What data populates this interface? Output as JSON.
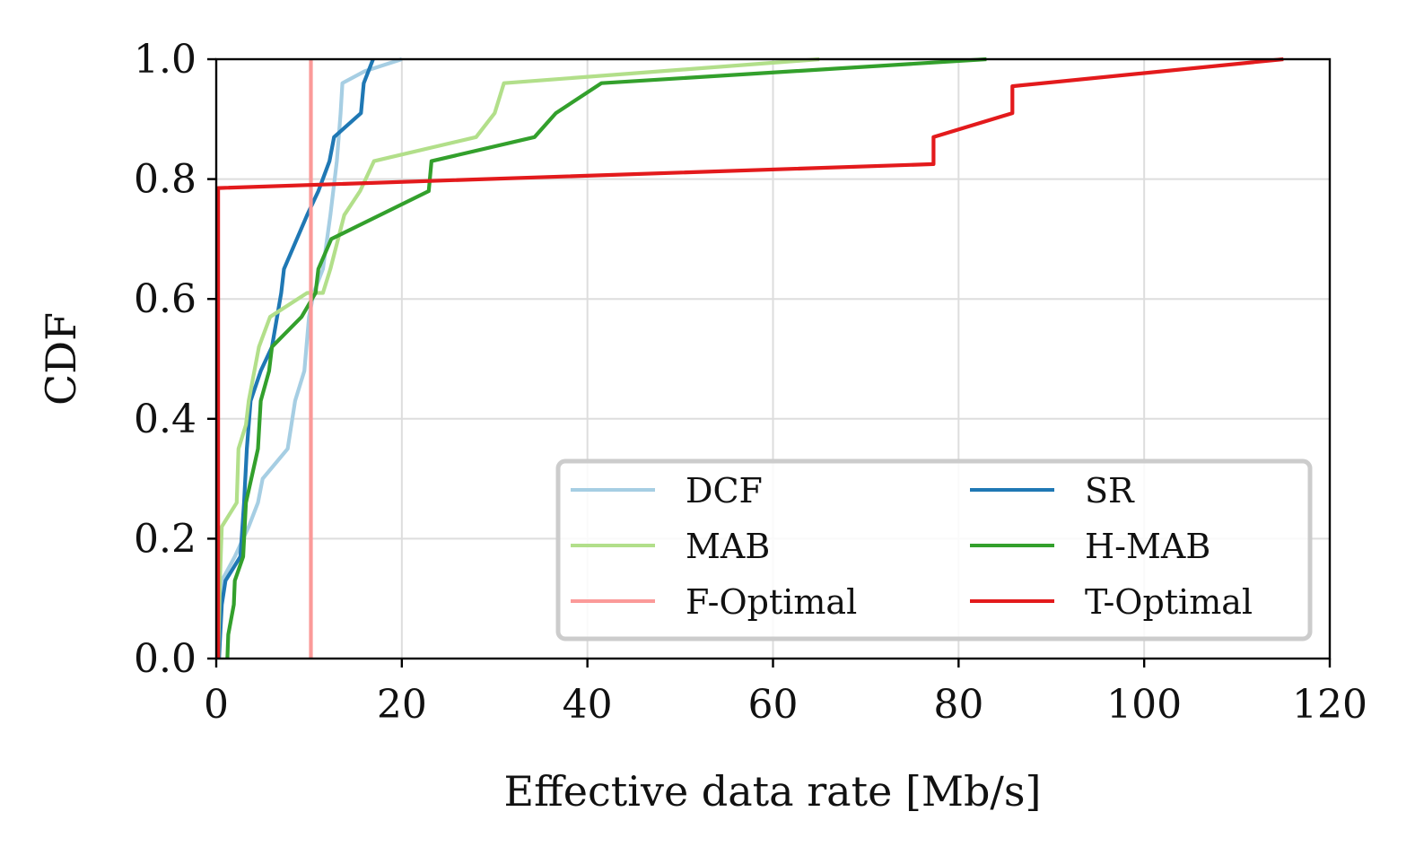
{
  "chart_data": {
    "type": "line",
    "title": "",
    "xlabel": "Effective data rate [Mb/s]",
    "ylabel": "CDF",
    "xlim": [
      0,
      120
    ],
    "ylim": [
      0.0,
      1.0
    ],
    "xticks": [
      0,
      20,
      40,
      60,
      80,
      100,
      120
    ],
    "xtick_labels": [
      "0",
      "20",
      "40",
      "60",
      "80",
      "100",
      "120"
    ],
    "yticks": [
      0.0,
      0.2,
      0.4,
      0.6,
      0.8,
      1.0
    ],
    "ytick_labels": [
      "0.0",
      "0.2",
      "0.4",
      "0.6",
      "0.8",
      "1.0"
    ],
    "grid": true,
    "legend_position": "bottom-right",
    "series": [
      {
        "name": "DCF",
        "color": "#a6cee3",
        "x": [
          0.2,
          0.3,
          0.6,
          2.0,
          3.5,
          4.5,
          5.0,
          7.7,
          8.5,
          9.5,
          10.0,
          10.5,
          11.5,
          12.3,
          13.0,
          13.4,
          13.6,
          16.0,
          20.0
        ],
        "y": [
          0.0,
          0.09,
          0.13,
          0.17,
          0.22,
          0.26,
          0.3,
          0.35,
          0.43,
          0.48,
          0.57,
          0.61,
          0.65,
          0.74,
          0.83,
          0.91,
          0.96,
          0.98,
          1.0
        ]
      },
      {
        "name": "SR",
        "color": "#1f78b4",
        "x": [
          0.3,
          0.6,
          1.0,
          2.6,
          3.0,
          3.3,
          3.7,
          4.8,
          6.0,
          7.0,
          7.3,
          9.8,
          11.0,
          12.2,
          12.7,
          15.6,
          15.9,
          16.9
        ],
        "y": [
          0.0,
          0.09,
          0.13,
          0.17,
          0.26,
          0.35,
          0.43,
          0.48,
          0.52,
          0.61,
          0.65,
          0.74,
          0.78,
          0.83,
          0.87,
          0.91,
          0.96,
          1.0
        ]
      },
      {
        "name": "MAB",
        "color": "#b2df8a",
        "x": [
          0.2,
          0.4,
          0.6,
          2.2,
          2.4,
          3.2,
          3.5,
          4.6,
          5.8,
          9.8,
          11.5,
          12.3,
          13.8,
          15.5,
          17.0,
          28.0,
          30.0,
          31.0,
          65.0
        ],
        "y": [
          0.0,
          0.13,
          0.22,
          0.26,
          0.35,
          0.39,
          0.43,
          0.52,
          0.57,
          0.61,
          0.61,
          0.65,
          0.74,
          0.78,
          0.83,
          0.87,
          0.91,
          0.96,
          1.0
        ]
      },
      {
        "name": "H-MAB",
        "color": "#33a02c",
        "x": [
          1.2,
          1.3,
          1.9,
          2.0,
          2.9,
          3.2,
          4.5,
          4.8,
          5.7,
          6.0,
          9.2,
          10.7,
          11.0,
          12.4,
          22.9,
          23.2,
          34.3,
          36.6,
          41.5,
          83.0
        ],
        "y": [
          0.0,
          0.04,
          0.09,
          0.13,
          0.17,
          0.26,
          0.35,
          0.43,
          0.48,
          0.52,
          0.57,
          0.61,
          0.65,
          0.7,
          0.78,
          0.83,
          0.87,
          0.91,
          0.96,
          1.0
        ]
      },
      {
        "name": "F-Optimal",
        "color": "#fb9a99",
        "x": [
          10.2,
          10.2
        ],
        "y": [
          0.0,
          1.0
        ]
      },
      {
        "name": "T-Optimal",
        "color": "#e31a1c",
        "x": [
          0.2,
          0.2,
          77.3,
          77.3,
          85.8,
          85.8,
          115.0
        ],
        "y": [
          0.0,
          0.785,
          0.825,
          0.87,
          0.91,
          0.955,
          1.0
        ]
      }
    ],
    "legend": [
      [
        "DCF",
        "SR"
      ],
      [
        "MAB",
        "H-MAB"
      ],
      [
        "F-Optimal",
        "T-Optimal"
      ]
    ]
  }
}
